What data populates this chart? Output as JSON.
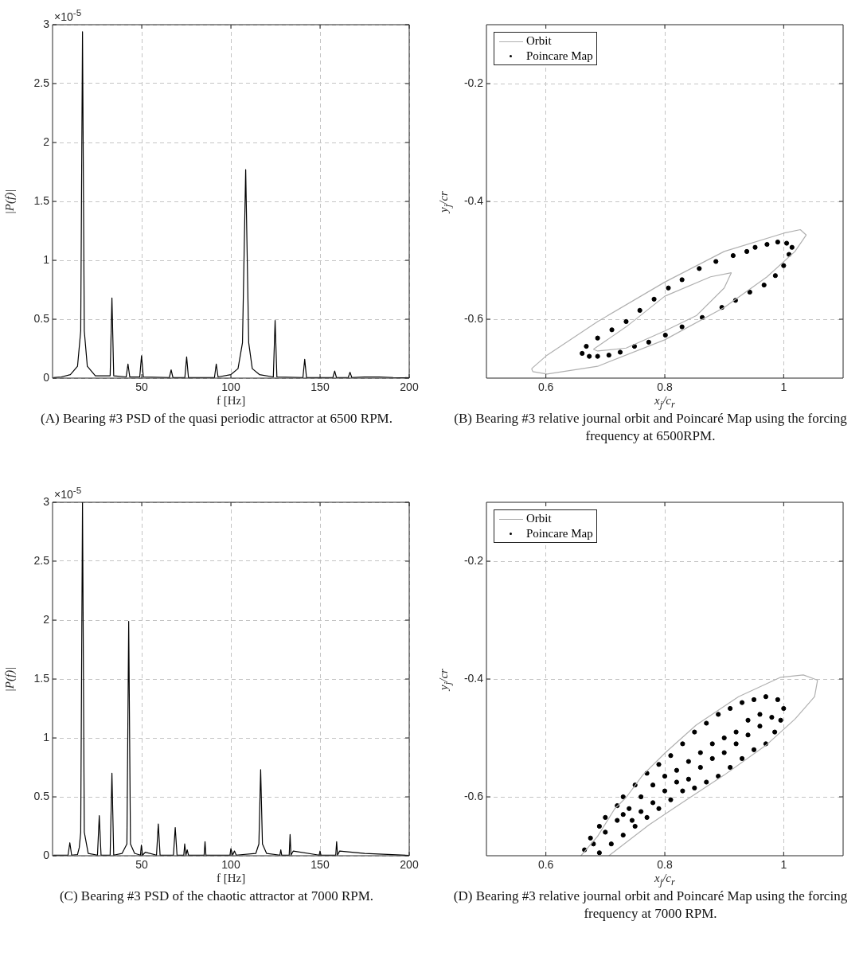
{
  "chart_data": [
    {
      "type": "line",
      "xlabel": "f [Hz]",
      "ylabel": "|P(f)|",
      "color": "#000000",
      "xlim": [
        0,
        200
      ],
      "xticks": [
        50,
        100,
        150,
        200
      ],
      "ylim": [
        0,
        3
      ],
      "yticks": [
        0,
        0.5,
        1,
        1.5,
        2,
        2.5,
        3
      ],
      "grid": true,
      "annotations": [
        "×10$^{-5}$",
        "(A) Bearing #3 PSD of the quasi periodic attractor at 6500 RPM."
      ],
      "x": [
        0.5,
        5,
        10,
        14,
        15.8,
        16.8,
        17.8,
        19.5,
        24,
        32.3,
        33.3,
        34.3,
        41.3,
        42.3,
        43.3,
        48.9,
        49.9,
        50.9,
        65.5,
        66.5,
        67.5,
        74.2,
        75.2,
        76.2,
        90.8,
        91.8,
        92.8,
        100,
        104,
        106.5,
        108.3,
        110,
        112,
        116,
        123.8,
        124.8,
        125.8,
        140.4,
        141.4,
        142.4,
        157.2,
        158.2,
        159.2,
        165.8,
        166.8,
        167.8,
        175,
        183,
        191,
        200
      ],
      "values": [
        0.005,
        0.01,
        0.03,
        0.1,
        0.4,
        2.94,
        0.4,
        0.1,
        0.02,
        0.02,
        0.68,
        0.02,
        0.01,
        0.12,
        0.01,
        0.01,
        0.19,
        0.01,
        0.005,
        0.07,
        0.005,
        0.005,
        0.18,
        0.005,
        0.005,
        0.12,
        0.01,
        0.03,
        0.08,
        0.3,
        1.77,
        0.3,
        0.08,
        0.03,
        0.01,
        0.49,
        0.01,
        0.005,
        0.16,
        0.005,
        0.005,
        0.06,
        0.005,
        0.005,
        0.05,
        0.005,
        0.01,
        0.01,
        0.005,
        0.003
      ]
    },
    {
      "type": "line",
      "xlabel": "x$_{j}$/c$_{r}$",
      "ylabel": "y$_{j}$/cr",
      "xlim": [
        0.5,
        1.1
      ],
      "xticks": [
        0.6,
        0.8,
        1
      ],
      "ylim": [
        -0.7,
        -0.1
      ],
      "yticks": [
        -0.6,
        -0.4,
        -0.2
      ],
      "grid": true,
      "legend": "top left",
      "annotations": [
        "(B) Bearing #3 relative journal orbit and Poincaré Map using the forcing frequency at 6500RPM."
      ],
      "series": [
        {
          "name": "Orbit",
          "color": "#b0b0b0",
          "x": [
            0.576,
            0.602,
            0.687,
            0.8,
            0.9,
            1.0,
            1.028,
            1.038
          ],
          "values": [
            -0.684,
            -0.661,
            -0.604,
            -0.537,
            -0.485,
            -0.454,
            -0.448,
            -0.457
          ]
        },
        {
          "color": "#b0b0b0",
          "x": [
            0.576,
            0.578,
            0.602,
            0.687,
            0.8,
            0.9,
            0.972,
            1.019,
            1.038
          ],
          "values": [
            -0.684,
            -0.689,
            -0.693,
            -0.68,
            -0.635,
            -0.58,
            -0.528,
            -0.485,
            -0.457
          ]
        },
        {
          "color": "#b0b0b0",
          "x": [
            0.68,
            0.735,
            0.8,
            0.877,
            0.912
          ],
          "values": [
            -0.651,
            -0.613,
            -0.561,
            -0.528,
            -0.521
          ]
        },
        {
          "color": "#b0b0b0",
          "x": [
            0.68,
            0.687,
            0.735,
            0.8,
            0.853,
            0.9,
            0.912
          ],
          "values": [
            -0.651,
            -0.654,
            -0.649,
            -0.62,
            -0.594,
            -0.547,
            -0.521
          ]
        },
        {
          "name": "Poincare Map",
          "type": "scatter",
          "marker": "circle",
          "color": "#000000",
          "x": [
            0.661,
            0.668,
            0.673,
            0.687,
            0.687,
            0.706,
            0.711,
            0.725,
            0.735,
            0.749,
            0.758,
            0.773,
            0.782,
            0.801,
            0.806,
            0.829,
            0.829,
            0.858,
            0.863,
            0.886,
            0.896,
            0.915,
            0.919,
            0.938,
            0.943,
            0.952,
            0.967,
            0.972,
            0.986,
            0.99,
            1.0,
            1.005,
            1.009,
            1.014
          ],
          "values": [
            -0.658,
            -0.646,
            -0.663,
            -0.632,
            -0.663,
            -0.661,
            -0.618,
            -0.656,
            -0.604,
            -0.646,
            -0.585,
            -0.639,
            -0.566,
            -0.627,
            -0.547,
            -0.533,
            -0.613,
            -0.514,
            -0.597,
            -0.502,
            -0.58,
            -0.492,
            -0.568,
            -0.485,
            -0.554,
            -0.478,
            -0.542,
            -0.473,
            -0.526,
            -0.469,
            -0.509,
            -0.471,
            -0.49,
            -0.478
          ]
        }
      ]
    },
    {
      "type": "line",
      "xlabel": "f [Hz]",
      "ylabel": "|P(f)|",
      "color": "#000000",
      "xlim": [
        0,
        200
      ],
      "xticks": [
        50,
        100,
        150,
        200
      ],
      "ylim": [
        0,
        3
      ],
      "yticks": [
        0,
        0.5,
        1,
        1.5,
        2,
        2.5,
        3
      ],
      "grid": true,
      "annotations": [
        "×10$^{-5}$",
        "(C) Bearing #3 PSD of the chaotic attractor at 7000 RPM."
      ],
      "x": [
        0.5,
        8.7,
        9.7,
        10.7,
        14,
        15,
        15.8,
        16.8,
        17.8,
        20,
        25.2,
        26.2,
        27.2,
        32.3,
        33.3,
        34.3,
        39,
        41.7,
        42.7,
        43.7,
        46,
        49.3,
        49.8,
        50.5,
        52,
        58.3,
        59.3,
        60.3,
        67.8,
        68.8,
        69.8,
        73.6,
        74.1,
        74.8,
        75.5,
        76.2,
        85,
        85.5,
        86,
        99.5,
        100,
        101,
        102,
        103,
        114,
        115.7,
        116.7,
        117.7,
        120,
        127.5,
        128,
        128.5,
        132.7,
        133.2,
        133.7,
        135,
        149.5,
        150,
        150.5,
        158.8,
        159.3,
        159.8,
        161,
        175,
        200
      ],
      "values": [
        0.005,
        0.005,
        0.11,
        0.005,
        0.01,
        0.07,
        0.2,
        3,
        0.2,
        0.02,
        0.005,
        0.34,
        0.005,
        0.005,
        0.7,
        0.005,
        0.02,
        0.1,
        1.99,
        0.1,
        0.02,
        0.005,
        0.09,
        0.005,
        0.03,
        0.005,
        0.27,
        0.005,
        0.005,
        0.24,
        0.005,
        0.005,
        0.1,
        0.005,
        0.05,
        0.005,
        0.005,
        0.12,
        0.005,
        0.005,
        0.06,
        0.005,
        0.04,
        0.005,
        0.02,
        0.1,
        0.73,
        0.1,
        0.02,
        0.005,
        0.05,
        0.005,
        0.005,
        0.18,
        0.005,
        0.04,
        0.005,
        0.04,
        0.005,
        0.005,
        0.12,
        0.005,
        0.04,
        0.02,
        0.003
      ]
    },
    {
      "type": "line",
      "xlabel": "x$_{j}$/c$_{r}$",
      "ylabel": "y$_{j}$/cr",
      "xlim": [
        0.5,
        1.1
      ],
      "xticks": [
        0.6,
        0.8,
        1
      ],
      "ylim": [
        -0.7,
        -0.1
      ],
      "yticks": [
        -0.6,
        -0.4,
        -0.2
      ],
      "grid": true,
      "legend": "top left",
      "annotations": [
        "(D) Bearing #3 relative journal orbit and Poincaré Map using the forcing frequency at 7000 RPM."
      ],
      "series": [
        {
          "name": "Orbit",
          "color": "#b0b0b0",
          "x": [
            0.659,
            0.687,
            0.716,
            0.735,
            0.763,
            0.801,
            0.853,
            0.924,
            0.995,
            1.033,
            1.057
          ],
          "values": [
            -0.7,
            -0.667,
            -0.62,
            -0.601,
            -0.563,
            -0.525,
            -0.478,
            -0.43,
            -0.397,
            -0.393,
            -0.402
          ]
        },
        {
          "color": "#b0b0b0",
          "x": [
            0.706,
            0.773,
            0.829,
            0.9,
            0.972,
            1.019,
            1.052,
            1.057
          ],
          "values": [
            -0.7,
            -0.648,
            -0.61,
            -0.563,
            -0.511,
            -0.468,
            -0.43,
            -0.402
          ]
        },
        {
          "name": "Poincare Map",
          "type": "scatter",
          "marker": "circle",
          "color": "#000000",
          "x": [
            0.665,
            0.675,
            0.68,
            0.69,
            0.69,
            0.7,
            0.7,
            0.71,
            0.72,
            0.72,
            0.73,
            0.73,
            0.73,
            0.74,
            0.745,
            0.75,
            0.75,
            0.76,
            0.76,
            0.77,
            0.77,
            0.78,
            0.78,
            0.79,
            0.79,
            0.8,
            0.8,
            0.81,
            0.81,
            0.82,
            0.82,
            0.83,
            0.83,
            0.84,
            0.84,
            0.85,
            0.85,
            0.86,
            0.86,
            0.87,
            0.87,
            0.88,
            0.88,
            0.89,
            0.89,
            0.9,
            0.9,
            0.91,
            0.91,
            0.92,
            0.92,
            0.93,
            0.93,
            0.94,
            0.94,
            0.95,
            0.95,
            0.96,
            0.96,
            0.97,
            0.97,
            0.98,
            0.985,
            0.99,
            0.995,
            1.0
          ],
          "values": [
            -0.69,
            -0.67,
            -0.68,
            -0.65,
            -0.695,
            -0.66,
            -0.635,
            -0.68,
            -0.64,
            -0.615,
            -0.6,
            -0.665,
            -0.63,
            -0.62,
            -0.64,
            -0.58,
            -0.65,
            -0.6,
            -0.625,
            -0.56,
            -0.635,
            -0.58,
            -0.61,
            -0.545,
            -0.62,
            -0.565,
            -0.59,
            -0.53,
            -0.605,
            -0.555,
            -0.575,
            -0.51,
            -0.59,
            -0.54,
            -0.57,
            -0.49,
            -0.585,
            -0.525,
            -0.55,
            -0.475,
            -0.575,
            -0.51,
            -0.535,
            -0.46,
            -0.565,
            -0.5,
            -0.525,
            -0.45,
            -0.55,
            -0.49,
            -0.51,
            -0.44,
            -0.535,
            -0.47,
            -0.495,
            -0.435,
            -0.52,
            -0.46,
            -0.48,
            -0.43,
            -0.51,
            -0.465,
            -0.49,
            -0.435,
            -0.47,
            -0.45
          ]
        }
      ]
    }
  ]
}
